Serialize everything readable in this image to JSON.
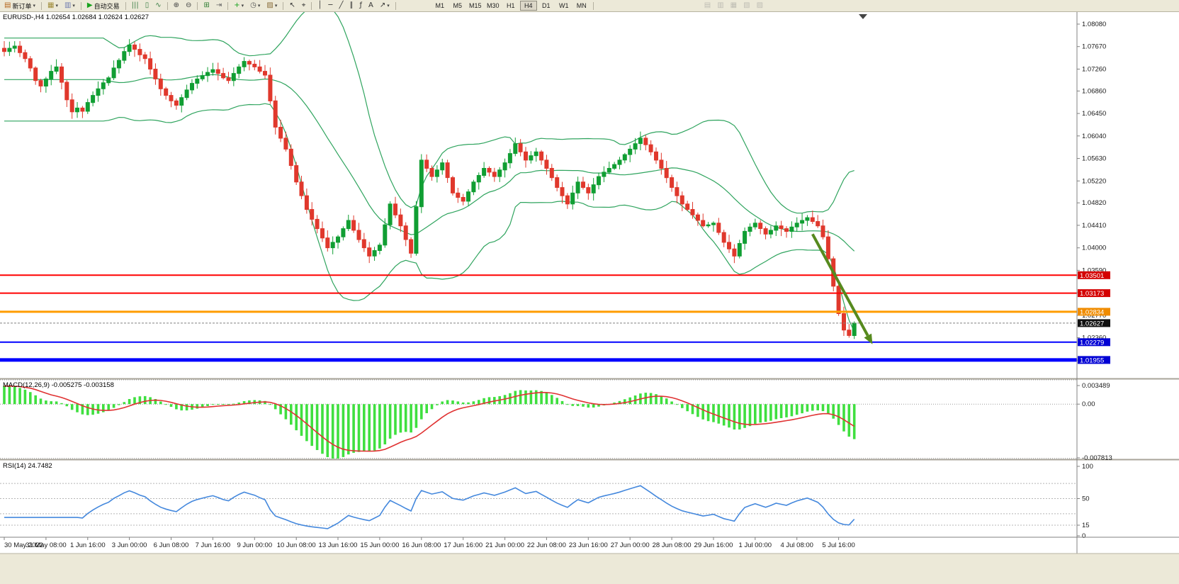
{
  "toolbar": {
    "groups": [
      {
        "name": "order",
        "items": [
          {
            "name": "new-order-button",
            "glyph": "▤",
            "glyph_color": "#b5651d",
            "label": "新订单",
            "caret": true
          }
        ]
      },
      {
        "name": "windows",
        "items": [
          {
            "name": "new-chart-icon",
            "glyph": "▦",
            "glyph_color": "#a08c3a",
            "caret": true
          },
          {
            "name": "chart-profiles-icon",
            "glyph": "▥",
            "glyph_color": "#6d7ab0",
            "caret": true
          }
        ]
      },
      {
        "name": "autotrade",
        "items": [
          {
            "name": "auto-trading-button",
            "glyph": "▶",
            "glyph_color": "#18a31d",
            "label": "自动交易"
          }
        ]
      },
      {
        "name": "chart-type",
        "items": [
          {
            "name": "bar-chart-icon",
            "glyph": "|||",
            "glyph_color": "#3a7d44"
          },
          {
            "name": "candlestick-chart-icon",
            "glyph": "▯",
            "glyph_color": "#3a7d44"
          },
          {
            "name": "line-chart-icon",
            "glyph": "∿",
            "glyph_color": "#3a7d44"
          }
        ]
      },
      {
        "name": "zoom",
        "items": [
          {
            "name": "zoom-in-icon",
            "glyph": "⊕",
            "glyph_color": "#444444"
          },
          {
            "name": "zoom-out-icon",
            "glyph": "⊖",
            "glyph_color": "#444444"
          }
        ]
      },
      {
        "name": "arrange",
        "items": [
          {
            "name": "tile-windows-icon",
            "glyph": "⊞",
            "glyph_color": "#2f7d32"
          },
          {
            "name": "auto-scroll-icon",
            "glyph": "⇥",
            "glyph_color": "#666666"
          }
        ]
      },
      {
        "name": "insert",
        "items": [
          {
            "name": "indicators-icon",
            "glyph": "+",
            "glyph_color": "#18a31d",
            "caret": true
          },
          {
            "name": "periods-icon",
            "glyph": "◷",
            "glyph_color": "#555555",
            "caret": true
          },
          {
            "name": "templates-icon",
            "glyph": "▨",
            "glyph_color": "#8a6d3b",
            "caret": true
          }
        ]
      },
      {
        "name": "pointer",
        "items": [
          {
            "name": "cursor-icon",
            "glyph": "↖",
            "glyph_color": "#333333"
          },
          {
            "name": "crosshair-icon",
            "glyph": "⌖",
            "glyph_color": "#333333"
          }
        ]
      },
      {
        "name": "draw",
        "items": [
          {
            "name": "vertical-line-icon",
            "glyph": "│",
            "glyph_color": "#333333"
          },
          {
            "name": "horizontal-line-icon",
            "glyph": "─",
            "glyph_color": "#333333"
          },
          {
            "name": "trendline-icon",
            "glyph": "╱",
            "glyph_color": "#333333"
          },
          {
            "name": "channel-icon",
            "glyph": "∥",
            "glyph_color": "#333333"
          },
          {
            "name": "fibonacci-icon",
            "glyph": "ƒ",
            "glyph_color": "#333333"
          },
          {
            "name": "text-tool-icon",
            "glyph": "A",
            "glyph_color": "#333333"
          },
          {
            "name": "arrows-tool-icon",
            "glyph": "↗",
            "glyph_color": "#333333",
            "caret": true
          }
        ]
      },
      {
        "name": "timeframes",
        "type": "timeframes",
        "items": []
      },
      {
        "name": "extra",
        "items": [
          {
            "name": "market-watch-icon",
            "glyph": "▤",
            "glyph_color": "#888888",
            "disabled": true
          },
          {
            "name": "data-window-icon",
            "glyph": "▥",
            "glyph_color": "#888888",
            "disabled": true
          },
          {
            "name": "navigator-icon",
            "glyph": "▦",
            "glyph_color": "#888888",
            "disabled": true
          },
          {
            "name": "terminal-icon",
            "glyph": "▧",
            "glyph_color": "#888888",
            "disabled": true
          },
          {
            "name": "tester-icon",
            "glyph": "▨",
            "glyph_color": "#888888",
            "disabled": true
          }
        ]
      }
    ],
    "timeframes": [
      "M1",
      "M5",
      "M15",
      "M30",
      "H1",
      "H4",
      "D1",
      "W1",
      "MN"
    ],
    "active_timeframe": "H4"
  },
  "chart_data": {
    "type": "candlestick",
    "symbol": "EURUSD-",
    "period": "H4",
    "title": "EURUSD-,H4 1.02654 1.02684 1.02624 1.02627",
    "ohlc": {
      "open": "1.02654",
      "high": "1.02684",
      "low": "1.02624",
      "close": "1.02627"
    },
    "price_range": {
      "top": 1.083,
      "bottom": 1.0163
    },
    "closes": [
      1.0758,
      1.0764,
      1.0768,
      1.0756,
      1.0745,
      1.0728,
      1.0705,
      1.0695,
      1.0708,
      1.0722,
      1.073,
      1.0702,
      1.067,
      1.0648,
      1.0655,
      1.0649,
      1.0665,
      1.0678,
      1.069,
      1.0701,
      1.071,
      1.0728,
      1.0742,
      1.0758,
      1.077,
      1.0762,
      1.0752,
      1.0745,
      1.0726,
      1.0708,
      1.069,
      1.0678,
      1.0668,
      1.066,
      1.0674,
      1.0688,
      1.07,
      1.0708,
      1.0714,
      1.072,
      1.0725,
      1.0718,
      1.071,
      1.0705,
      1.0718,
      1.073,
      1.074,
      1.0735,
      1.073,
      1.0722,
      1.0715,
      1.0668,
      1.062,
      1.06,
      1.058,
      1.055,
      1.052,
      1.0495,
      1.047,
      1.0452,
      1.0435,
      1.0418,
      1.04,
      1.041,
      1.042,
      1.0435,
      1.045,
      1.0432,
      1.0415,
      1.04,
      1.0385,
      1.0395,
      1.0405,
      1.0442,
      1.048,
      1.046,
      1.044,
      1.0415,
      1.039,
      1.0475,
      1.056,
      1.0545,
      1.053,
      1.0542,
      1.0555,
      1.0528,
      1.05,
      1.0492,
      1.0485,
      1.0502,
      1.052,
      1.0532,
      1.0545,
      1.0538,
      1.053,
      1.0542,
      1.0555,
      1.0572,
      1.059,
      1.0575,
      1.056,
      1.0568,
      1.0575,
      1.056,
      1.0545,
      1.0528,
      1.051,
      1.0495,
      1.048,
      1.05,
      1.052,
      1.051,
      1.05,
      1.0515,
      1.053,
      1.0538,
      1.0545,
      1.0552,
      1.056,
      1.057,
      1.058,
      1.059,
      1.06,
      1.0588,
      1.0575,
      1.056,
      1.0545,
      1.0528,
      1.051,
      1.0495,
      1.048,
      1.047,
      1.046,
      1.045,
      1.044,
      1.0442,
      1.0445,
      1.0428,
      1.041,
      1.0398,
      1.0385,
      1.0408,
      1.043,
      1.0438,
      1.0445,
      1.0435,
      1.0425,
      1.0432,
      1.044,
      1.0435,
      1.043,
      1.0438,
      1.0445,
      1.045,
      1.0455,
      1.0448,
      1.044,
      1.042,
      1.038,
      1.033,
      1.028,
      1.025,
      1.024,
      1.02627
    ],
    "x_label_step": 8,
    "x_labels": [
      "30 May 2022",
      "31 May 08:00",
      "1 Jun 16:00",
      "3 Jun 00:00",
      "6 Jun 08:00",
      "7 Jun 16:00",
      "9 Jun 00:00",
      "10 Jun 08:00",
      "13 Jun 16:00",
      "15 Jun 00:00",
      "16 Jun 08:00",
      "17 Jun 16:00",
      "21 Jun 00:00",
      "22 Jun 08:00",
      "23 Jun 16:00",
      "27 Jun 00:00",
      "28 Jun 08:00",
      "29 Jun 16:00",
      "1 Jul 00:00",
      "4 Jul 08:00",
      "5 Jul 16:00"
    ],
    "y_axis_labels": [
      "1.08080",
      "1.07670",
      "1.07260",
      "1.06860",
      "1.06450",
      "1.06040",
      "1.05630",
      "1.05220",
      "1.04820",
      "1.04410",
      "1.04000",
      "1.03590",
      "1.03180",
      "1.02770",
      "1.02360",
      "1.01950"
    ],
    "bollinger": {
      "period": 20,
      "deviations": 2
    },
    "hlines": [
      {
        "price": 1.03501,
        "label": "1.03501",
        "color": "#ff0000",
        "tag_color": "#d40000",
        "width": 2
      },
      {
        "price": 1.03173,
        "label": "1.03173",
        "color": "#ff0000",
        "tag_color": "#d40000",
        "width": 2
      },
      {
        "price": 1.02834,
        "label": "1.02834",
        "color": "#ff9c00",
        "tag_color": "#f08c00",
        "width": 3
      },
      {
        "price": 1.02279,
        "label": "1.02279",
        "color": "#0000ff",
        "tag_color": "#0000d4",
        "width": 2
      },
      {
        "price": 1.01955,
        "label": "1.01955",
        "color": "#0000ff",
        "tag_color": "#0000d4",
        "width": 5
      }
    ],
    "current_price": {
      "value": 1.02627,
      "label": "1.02627",
      "line_color": "#808080",
      "tag_color": "#101010"
    },
    "arrow": {
      "from_index": 155,
      "from_price": 1.0425,
      "to_index": 166.5,
      "to_price": 1.0224,
      "width": 4
    },
    "macd": {
      "title": "MACD(12,26,9) -0.005275 -0.003158",
      "fast": 12,
      "slow": 26,
      "smoothing": 9,
      "value": -0.005275,
      "signal_value": -0.003158,
      "axis_labels": [
        {
          "v": 0.003489,
          "t": "0.003489"
        },
        {
          "v": 0,
          "t": "0.00"
        },
        {
          "v": -0.007813,
          "t": "-0.007813"
        }
      ]
    },
    "rsi": {
      "title": "RSI(14) 24.7482",
      "period": 14,
      "value": 24.7482,
      "levels": [
        70,
        50,
        30,
        15
      ],
      "axis_labels": [
        {
          "v": 100,
          "t": "100"
        },
        {
          "v": 50,
          "t": "50"
        },
        {
          "v": 15,
          "t": "15"
        },
        {
          "v": 0,
          "t": "0"
        }
      ]
    },
    "colors": {
      "up": "#109e33",
      "down": "#e0382c",
      "bollinger": "#2fa45e",
      "macd_hist": "#3fdf3f",
      "macd_signal": "#e03232",
      "rsi": "#4488dd",
      "arrow": "#568a1e",
      "axis_text": "#1a1a1a",
      "panel_border": "#808080"
    }
  }
}
